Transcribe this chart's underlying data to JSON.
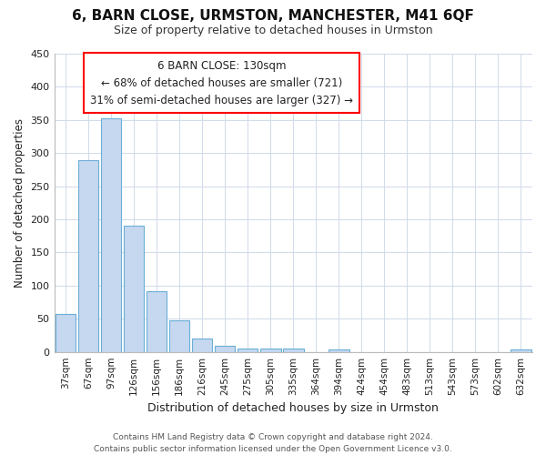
{
  "title": "6, BARN CLOSE, URMSTON, MANCHESTER, M41 6QF",
  "subtitle": "Size of property relative to detached houses in Urmston",
  "xlabel": "Distribution of detached houses by size in Urmston",
  "ylabel": "Number of detached properties",
  "categories": [
    "37sqm",
    "67sqm",
    "97sqm",
    "126sqm",
    "156sqm",
    "186sqm",
    "216sqm",
    "245sqm",
    "275sqm",
    "305sqm",
    "335sqm",
    "364sqm",
    "394sqm",
    "424sqm",
    "454sqm",
    "483sqm",
    "513sqm",
    "543sqm",
    "573sqm",
    "602sqm",
    "632sqm"
  ],
  "values": [
    57,
    290,
    353,
    191,
    91,
    47,
    20,
    9,
    5,
    5,
    5,
    0,
    4,
    0,
    0,
    0,
    0,
    0,
    0,
    0,
    4
  ],
  "bar_color": "#c5d8f0",
  "bar_edge_color": "#6baed6",
  "ylim": [
    0,
    450
  ],
  "yticks": [
    0,
    50,
    100,
    150,
    200,
    250,
    300,
    350,
    400,
    450
  ],
  "annotation_box_text": "6 BARN CLOSE: 130sqm\n← 68% of detached houses are smaller (721)\n31% of semi-detached houses are larger (327) →",
  "footer_text": "Contains HM Land Registry data © Crown copyright and database right 2024.\nContains public sector information licensed under the Open Government Licence v3.0.",
  "background_color": "#ffffff",
  "plot_background_color": "#ffffff",
  "grid_color": "#d0daea"
}
